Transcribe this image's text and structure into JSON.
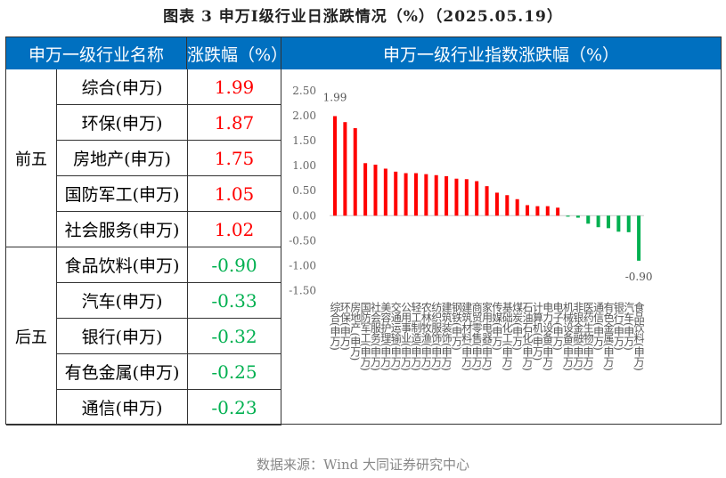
{
  "title": "图表 3  申万Ⅰ级行业日涨跌情况（%）（2025.05.19）",
  "table": {
    "headers": {
      "name": "申万一级行业名称",
      "change": "涨跌幅（%）",
      "chart": "申万一级行业指数涨跌幅（%）"
    },
    "groups": [
      {
        "label": "前五",
        "rows": [
          {
            "name": "综合(申万)",
            "value": "1.99"
          },
          {
            "name": "环保(申万)",
            "value": "1.87"
          },
          {
            "name": "房地产(申万)",
            "value": "1.75"
          },
          {
            "name": "国防军工(申万)",
            "value": "1.05"
          },
          {
            "name": "社会服务(申万)",
            "value": "1.02"
          }
        ]
      },
      {
        "label": "后五",
        "rows": [
          {
            "name": "食品饮料(申万)",
            "value": "-0.90"
          },
          {
            "name": "汽车(申万)",
            "value": "-0.33"
          },
          {
            "name": "银行(申万)",
            "value": "-0.32"
          },
          {
            "name": "有色金属(申万)",
            "value": "-0.25"
          },
          {
            "name": "通信(申万)",
            "value": "-0.23"
          }
        ]
      }
    ]
  },
  "colors": {
    "header": "#0070c0",
    "up": "#ff0000",
    "down": "#00b050"
  },
  "chart_data": {
    "type": "bar",
    "title": "申万一级行业指数涨跌幅（%）",
    "categories": [
      "综合(申万)",
      "环保(申万)",
      "房地产(申万)",
      "国防军工(申万)",
      "社会服务(申万)",
      "美容护理(申万)",
      "交通运输(申万)",
      "公用事业(申万)",
      "轻工制造(申万)",
      "农林牧渔(申万)",
      "纺织服饰(申万)",
      "建筑装饰(申万)",
      "钢铁(申万)",
      "建筑材料(申万)",
      "商贸零售(申万)",
      "家用电器(申万)",
      "传媒(申万)",
      "基础化工(申万)",
      "煤炭(申万)",
      "石油石化(申万)",
      "计算机(申万)",
      "电力设备(申万)",
      "电子(申万)",
      "机械设备(申万)",
      "非银金融(申万)",
      "医药生物(申万)",
      "通信(申万)",
      "有色金属(申万)",
      "银行(申万)",
      "汽车(申万)",
      "食品饮料(申万)"
    ],
    "values": [
      1.99,
      1.87,
      1.75,
      1.05,
      1.02,
      0.94,
      0.88,
      0.85,
      0.85,
      0.83,
      0.81,
      0.79,
      0.74,
      0.73,
      0.69,
      0.59,
      0.46,
      0.41,
      0.33,
      0.21,
      0.19,
      0.19,
      0.16,
      -0.02,
      -0.04,
      -0.16,
      -0.23,
      -0.25,
      -0.32,
      -0.33,
      -0.9
    ],
    "ylim": [
      -1.5,
      2.5
    ],
    "yticks": [
      "2.50",
      "2.00",
      "1.50",
      "1.00",
      "0.50",
      "0.00",
      "-0.50",
      "-1.00",
      "-1.50"
    ],
    "data_labels": {
      "max": "1.99",
      "min": "-0.90"
    }
  },
  "source": "数据来源：Wind 大同证券研究中心"
}
